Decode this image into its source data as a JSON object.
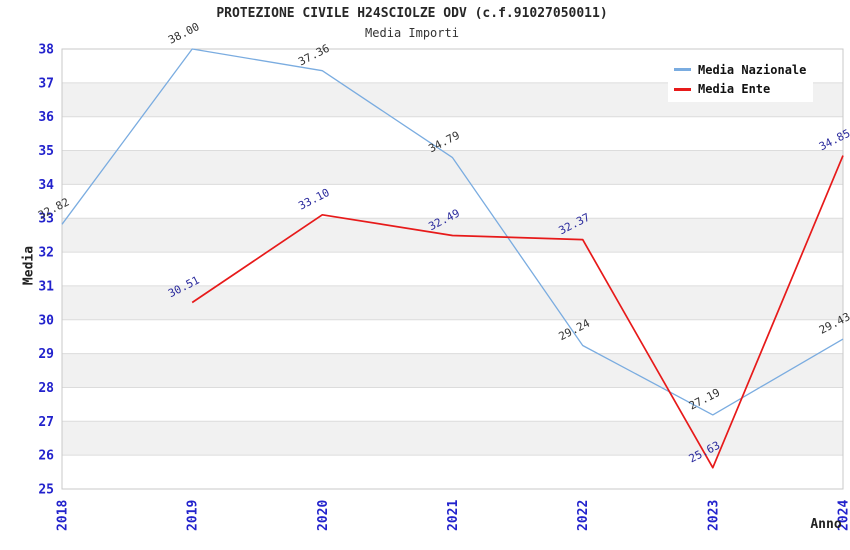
{
  "title": "PROTEZIONE CIVILE H24SCIOLZE ODV (c.f.91027050011)",
  "subtitle": "Media Importi",
  "axes": {
    "y_label": "Media",
    "x_label": "Anno"
  },
  "legend": {
    "items": [
      {
        "label": "Media Nazionale",
        "color": "#7aace0"
      },
      {
        "label": "Media Ente",
        "color": "#e71a1a"
      }
    ]
  },
  "colors": {
    "axis_tick": "#2222cc",
    "grid": "#dcdcdc",
    "band": "#f1f1f1",
    "border": "#c9c9c9",
    "title_text": "#262626"
  },
  "chart_data": {
    "type": "line",
    "title": "PROTEZIONE CIVILE H24SCIOLZE ODV (c.f.91027050011)",
    "subtitle": "Media Importi",
    "xlabel": "Anno",
    "ylabel": "Media",
    "x": [
      2018,
      2019,
      2020,
      2021,
      2022,
      2023,
      2024
    ],
    "series": [
      {
        "name": "Media Nazionale",
        "color": "#7aace0",
        "label_color": "#333333",
        "stroke_width": 1.3,
        "values": [
          32.82,
          38.0,
          37.36,
          34.79,
          29.24,
          27.19,
          29.43
        ]
      },
      {
        "name": "Media Ente",
        "color": "#e71a1a",
        "label_color": "#2b2b9d",
        "stroke_width": 1.7,
        "values": [
          null,
          30.51,
          33.1,
          32.49,
          32.37,
          25.63,
          34.85
        ]
      }
    ],
    "ylim": [
      25,
      38
    ],
    "ytick_step": 1,
    "grid": true,
    "band_stripes": true,
    "legend_position": "top-right",
    "point_label_format": "2-decimals"
  }
}
